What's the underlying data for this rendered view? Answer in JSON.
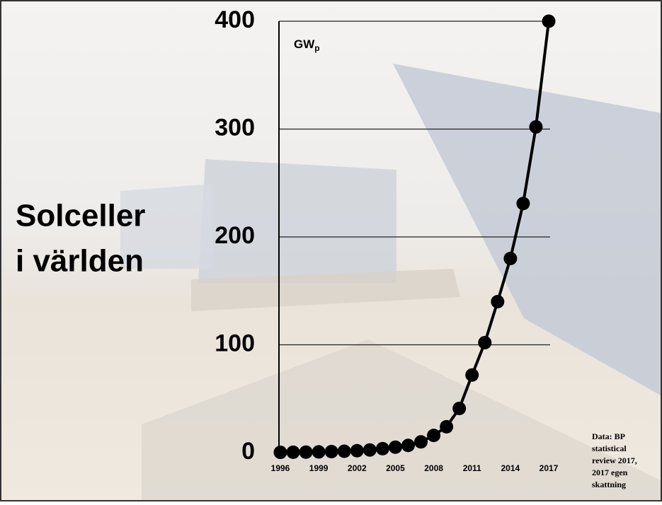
{
  "chart_data": {
    "type": "line",
    "title_lines": [
      "Solceller",
      "i världen"
    ],
    "unit": {
      "main": "GW",
      "sub": "p"
    },
    "source_lines": [
      "Data: BP",
      "statistical",
      "review 2017,",
      "2017 egen",
      "skattning"
    ],
    "x": [
      1996,
      1997,
      1998,
      1999,
      2000,
      2001,
      2002,
      2003,
      2004,
      2005,
      2006,
      2007,
      2008,
      2009,
      2010,
      2011,
      2012,
      2013,
      2014,
      2015,
      2016,
      2017
    ],
    "series": [
      {
        "color": "#000000",
        "values": [
          0.3,
          0.4,
          0.5,
          0.7,
          1.0,
          1.3,
          1.8,
          2.5,
          3.7,
          5.1,
          6.7,
          10,
          16,
          24,
          41,
          72,
          102,
          140,
          180,
          231,
          302,
          400
        ]
      }
    ],
    "xlim": [
      1996,
      2017
    ],
    "xticks": [
      1996,
      1999,
      2002,
      2005,
      2008,
      2011,
      2014,
      2017
    ],
    "ylim": [
      0,
      400
    ],
    "yticks": [
      0,
      100,
      200,
      300,
      400
    ],
    "grid": true
  }
}
